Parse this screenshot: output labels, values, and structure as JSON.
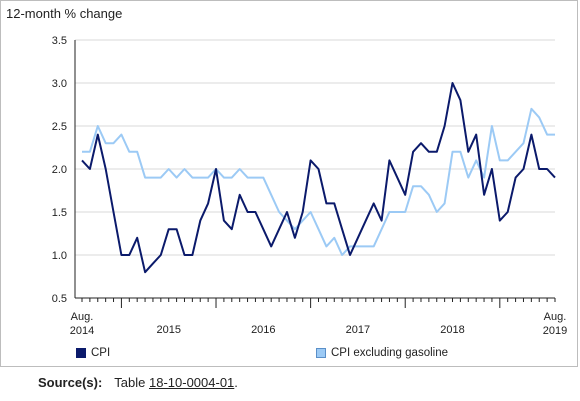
{
  "y_unit_label": "12-month % change",
  "legend": [
    {
      "label": "CPI",
      "color": "#0b1a6b"
    },
    {
      "label": "CPI excluding gasoline",
      "color": "#9ccaf5"
    }
  ],
  "source": {
    "label": "Source(s):",
    "prefix": "Table ",
    "link": "18-10-0004-01",
    "suffix": "."
  },
  "chart_data": {
    "type": "line",
    "ylim": [
      0.5,
      3.5
    ],
    "yticks": [
      "0.5",
      "1.0",
      "1.5",
      "2.0",
      "2.5",
      "3.0",
      "3.5"
    ],
    "grid": true,
    "x_start": "2014-08",
    "x_end": "2019-08",
    "xtick_labels": [
      {
        "label": "Aug.\n2014",
        "x": "2014-08"
      },
      {
        "label": "2015",
        "x": "2015-07"
      },
      {
        "label": "2016",
        "x": "2016-07"
      },
      {
        "label": "2017",
        "x": "2017-07"
      },
      {
        "label": "2018",
        "x": "2018-07"
      },
      {
        "label": "Aug.\n2019",
        "x": "2019-08"
      }
    ],
    "series": [
      {
        "name": "CPI",
        "color": "#0b1a6b",
        "values": [
          2.1,
          2.0,
          2.4,
          2.0,
          1.5,
          1.0,
          1.0,
          1.2,
          0.8,
          0.9,
          1.0,
          1.3,
          1.3,
          1.0,
          1.0,
          1.4,
          1.6,
          2.0,
          1.4,
          1.3,
          1.7,
          1.5,
          1.5,
          1.3,
          1.1,
          1.3,
          1.5,
          1.2,
          1.5,
          2.1,
          2.0,
          1.6,
          1.6,
          1.3,
          1.0,
          1.2,
          1.4,
          1.6,
          1.4,
          2.1,
          1.9,
          1.7,
          2.2,
          2.3,
          2.2,
          2.2,
          2.5,
          3.0,
          2.8,
          2.2,
          2.4,
          1.7,
          2.0,
          1.4,
          1.5,
          1.9,
          2.0,
          2.4,
          2.0,
          2.0,
          1.9
        ]
      },
      {
        "name": "CPI excluding gasoline",
        "color": "#9ccaf5",
        "values": [
          2.2,
          2.2,
          2.5,
          2.3,
          2.3,
          2.4,
          2.2,
          2.2,
          1.9,
          1.9,
          1.9,
          2.0,
          1.9,
          2.0,
          1.9,
          1.9,
          1.9,
          2.0,
          1.9,
          1.9,
          2.0,
          1.9,
          1.9,
          1.9,
          1.7,
          1.5,
          1.4,
          1.3,
          1.4,
          1.5,
          1.3,
          1.1,
          1.2,
          1.0,
          1.1,
          1.1,
          1.1,
          1.1,
          1.3,
          1.5,
          1.5,
          1.5,
          1.8,
          1.8,
          1.7,
          1.5,
          1.6,
          2.2,
          2.2,
          1.9,
          2.1,
          1.9,
          2.5,
          2.1,
          2.1,
          2.2,
          2.3,
          2.7,
          2.6,
          2.4,
          2.4
        ]
      }
    ]
  }
}
